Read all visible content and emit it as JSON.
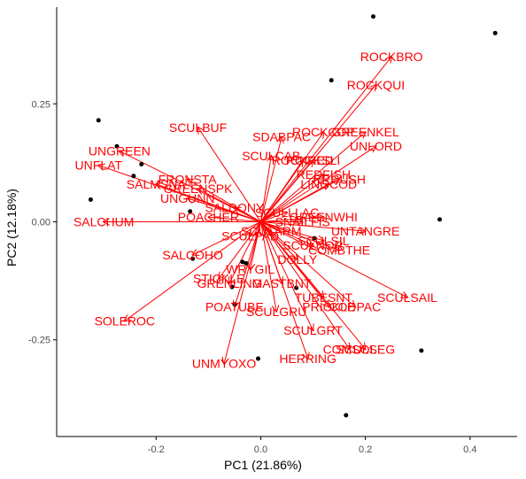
{
  "chart_data": {
    "type": "scatter",
    "subtype": "pca-biplot",
    "title": "",
    "xlabel": "PC1 (21.86%)",
    "ylabel": "PC2 (12.18%)",
    "xlim": [
      -0.39,
      0.49
    ],
    "ylim": [
      -0.455,
      0.455
    ],
    "x_ticks": [
      -0.2,
      0.0,
      0.2,
      0.4
    ],
    "x_tick_labels": [
      "-0.2",
      "0.0",
      "0.2",
      "0.4"
    ],
    "y_ticks": [
      -0.25,
      0.0,
      0.25
    ],
    "y_tick_labels": [
      "-0.25",
      "0.00",
      "0.25"
    ],
    "grid": false,
    "colors": {
      "points": "#000000",
      "arrows": "#ff0000",
      "labels": "#ff0000",
      "axes": "#000000"
    },
    "points": [
      {
        "x": 0.215,
        "y": 0.435
      },
      {
        "x": 0.448,
        "y": 0.4
      },
      {
        "x": 0.135,
        "y": 0.3
      },
      {
        "x": -0.31,
        "y": 0.215
      },
      {
        "x": -0.275,
        "y": 0.16
      },
      {
        "x": -0.228,
        "y": 0.122
      },
      {
        "x": -0.243,
        "y": 0.097
      },
      {
        "x": -0.325,
        "y": 0.047
      },
      {
        "x": -0.135,
        "y": 0.022
      },
      {
        "x": 0.342,
        "y": 0.005
      },
      {
        "x": 0.102,
        "y": -0.035
      },
      {
        "x": -0.13,
        "y": -0.078
      },
      {
        "x": -0.035,
        "y": -0.085
      },
      {
        "x": -0.028,
        "y": -0.088
      },
      {
        "x": 0.068,
        "y": -0.14
      },
      {
        "x": -0.055,
        "y": -0.138
      },
      {
        "x": -0.05,
        "y": -0.175
      },
      {
        "x": 0.307,
        "y": -0.273
      },
      {
        "x": -0.005,
        "y": -0.29
      },
      {
        "x": 0.163,
        "y": -0.41
      }
    ],
    "vectors": [
      {
        "name": "ROCKBRO",
        "x": 0.25,
        "y": 0.35
      },
      {
        "name": "ROCKQUI",
        "x": 0.22,
        "y": 0.29
      },
      {
        "name": "SCULBUF",
        "x": -0.12,
        "y": 0.2
      },
      {
        "name": "SDABPAC",
        "x": 0.04,
        "y": 0.18
      },
      {
        "name": "ROCKCOP",
        "x": 0.12,
        "y": 0.19
      },
      {
        "name": "GREENKEL",
        "x": 0.2,
        "y": 0.19
      },
      {
        "name": "UNLORD",
        "x": 0.22,
        "y": 0.16
      },
      {
        "name": "UNGREEN",
        "x": -0.27,
        "y": 0.15
      },
      {
        "name": "UNFLAT",
        "x": -0.31,
        "y": 0.12
      },
      {
        "name": "SCULCAB",
        "x": 0.02,
        "y": 0.14
      },
      {
        "name": "ROCKRED",
        "x": 0.08,
        "y": 0.13
      },
      {
        "name": "ROCKSLI",
        "x": 0.1,
        "y": 0.13
      },
      {
        "name": "REDFISH",
        "x": 0.12,
        "y": 0.1
      },
      {
        "name": "RRCUSH",
        "x": 0.15,
        "y": 0.09
      },
      {
        "name": "LINGCOD",
        "x": 0.13,
        "y": 0.08
      },
      {
        "name": "FRONSTA",
        "x": -0.14,
        "y": 0.09
      },
      {
        "name": "SALMSNA",
        "x": -0.2,
        "y": 0.08
      },
      {
        "name": "GREENSPK",
        "x": -0.12,
        "y": 0.07
      },
      {
        "name": "UNGUNN",
        "x": -0.14,
        "y": 0.05
      },
      {
        "name": "POACHER",
        "x": -0.1,
        "y": 0.01
      },
      {
        "name": "SALCHUM",
        "x": -0.3,
        "y": 0.0
      },
      {
        "name": "SALDONY",
        "x": -0.05,
        "y": 0.03
      },
      {
        "name": "SCULLLAC",
        "x": 0.05,
        "y": 0.02
      },
      {
        "name": "SNAILFIS",
        "x": 0.08,
        "y": 0.0
      },
      {
        "name": "GREENWHI",
        "x": 0.12,
        "y": 0.01
      },
      {
        "name": "UNTANGRE",
        "x": 0.2,
        "y": -0.02
      },
      {
        "name": "SCULARM",
        "x": 0.02,
        "y": -0.02
      },
      {
        "name": "SCULPAD",
        "x": -0.02,
        "y": -0.03
      },
      {
        "name": "SALCOHO",
        "x": -0.13,
        "y": -0.07
      },
      {
        "name": "SCULNOR",
        "x": 0.1,
        "y": -0.05
      },
      {
        "name": "COMBTHE",
        "x": 0.15,
        "y": -0.06
      },
      {
        "name": "SCULSIL",
        "x": 0.12,
        "y": -0.04
      },
      {
        "name": "DOLLY",
        "x": 0.07,
        "y": -0.08
      },
      {
        "name": "WRYGIL",
        "x": -0.02,
        "y": -0.1
      },
      {
        "name": "STICKLE",
        "x": -0.08,
        "y": -0.12
      },
      {
        "name": "GRENLING",
        "x": -0.06,
        "y": -0.13
      },
      {
        "name": "MASTBNT",
        "x": 0.04,
        "y": -0.13
      },
      {
        "name": "TUBESNT",
        "x": 0.12,
        "y": -0.16
      },
      {
        "name": "PRICKLE",
        "x": 0.13,
        "y": -0.18
      },
      {
        "name": "CODPAC",
        "x": 0.18,
        "y": -0.18
      },
      {
        "name": "SCULSAIL",
        "x": 0.28,
        "y": -0.16
      },
      {
        "name": "POATUBE",
        "x": -0.05,
        "y": -0.18
      },
      {
        "name": "SCULGRU",
        "x": 0.03,
        "y": -0.19
      },
      {
        "name": "SOLEROC",
        "x": -0.26,
        "y": -0.21
      },
      {
        "name": "SCULGRT",
        "x": 0.1,
        "y": -0.23
      },
      {
        "name": "COMSOL",
        "x": 0.17,
        "y": -0.27
      },
      {
        "name": "SCULSEG",
        "x": 0.2,
        "y": -0.27
      },
      {
        "name": "HERRING",
        "x": 0.09,
        "y": -0.29
      },
      {
        "name": "UNMYOXO",
        "x": -0.07,
        "y": -0.3
      }
    ]
  }
}
